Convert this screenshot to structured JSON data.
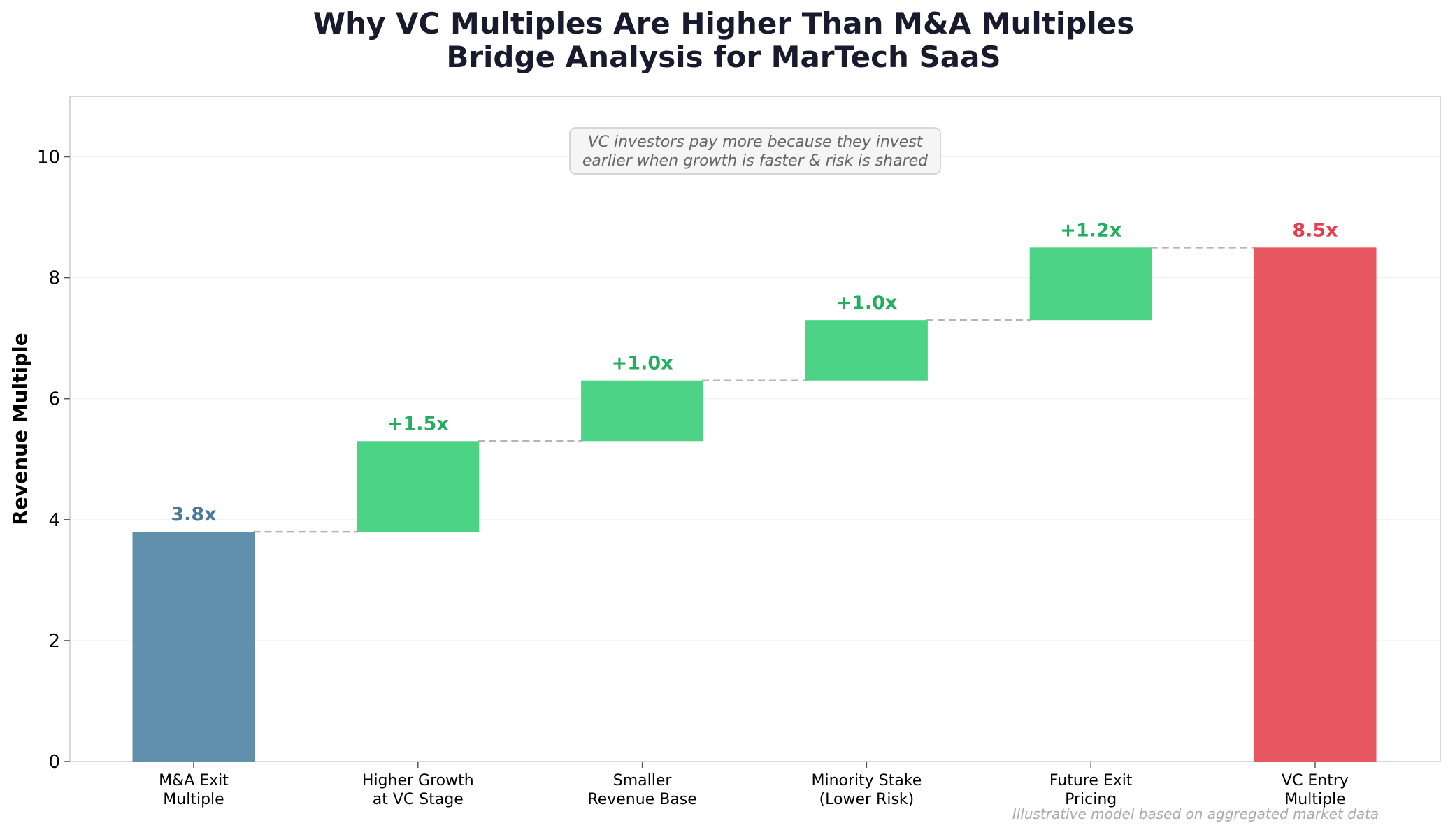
{
  "chart_data": {
    "type": "bar",
    "subtype": "waterfall",
    "title_lines": [
      "Why VC Multiples Are Higher Than M&A Multiples",
      "Bridge Analysis for MarTech SaaS"
    ],
    "xlabel": "",
    "ylabel": "Revenue Multiple",
    "ylim": [
      0,
      11
    ],
    "yticks": [
      "0",
      "2",
      "4",
      "6",
      "8",
      "10"
    ],
    "ytick_values": [
      0,
      2,
      4,
      6,
      8,
      10
    ],
    "grid": "horizontal, faint",
    "connectors": "dashed, grey",
    "categories": [
      [
        "M&A Exit",
        "Multiple"
      ],
      [
        "Higher Growth",
        "at VC Stage"
      ],
      [
        "Smaller",
        "Revenue Base"
      ],
      [
        "Minority Stake",
        "(Lower Risk)"
      ],
      [
        "Future Exit",
        "Pricing"
      ],
      [
        "VC Entry",
        "Multiple"
      ]
    ],
    "bars": [
      {
        "kind": "total",
        "start": 0,
        "end": 3.8,
        "label": "3.8x",
        "color": "#6190ad",
        "label_color": "#4a7a9b"
      },
      {
        "kind": "increase",
        "start": 3.8,
        "end": 5.3,
        "label": "+1.5x",
        "color": "#4cd385",
        "label_color": "#22ad5f"
      },
      {
        "kind": "increase",
        "start": 5.3,
        "end": 6.3,
        "label": "+1.0x",
        "color": "#4cd385",
        "label_color": "#22ad5f"
      },
      {
        "kind": "increase",
        "start": 6.3,
        "end": 7.3,
        "label": "+1.0x",
        "color": "#4cd385",
        "label_color": "#22ad5f"
      },
      {
        "kind": "increase",
        "start": 7.3,
        "end": 8.5,
        "label": "+1.2x",
        "color": "#4cd385",
        "label_color": "#22ad5f"
      },
      {
        "kind": "total",
        "start": 0,
        "end": 8.5,
        "label": "8.5x",
        "color": "#e85862",
        "label_color": "#e04050"
      }
    ],
    "annotation_lines": [
      "VC investors pay more because they invest",
      "earlier when growth is faster & risk is shared"
    ],
    "footnote": "Illustrative model based on aggregated market data"
  }
}
